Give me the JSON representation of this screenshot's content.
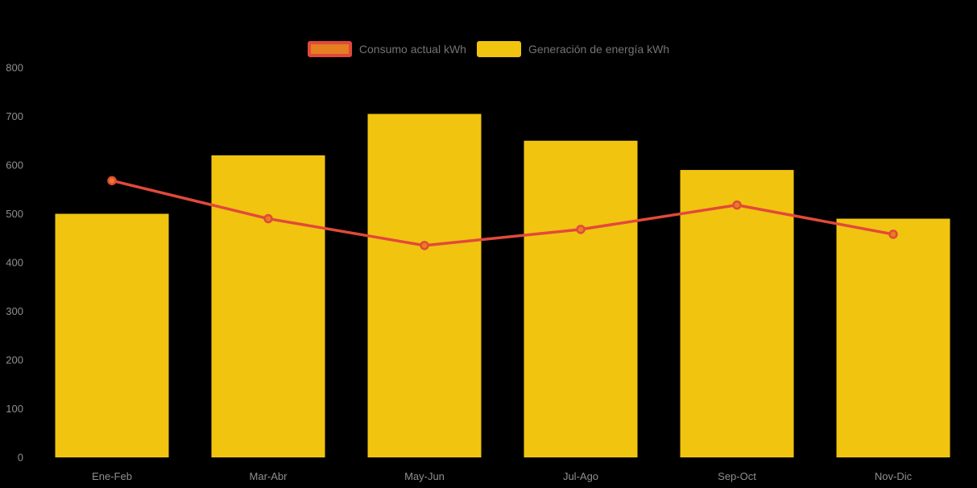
{
  "legend": {
    "items": [
      {
        "label": "Consumo actual kWh",
        "type": "line",
        "swatch_fill": "#e67e22",
        "swatch_border": "#e2493b"
      },
      {
        "label": "Generación de energía kWh",
        "type": "bar",
        "swatch_fill": "#f1c40f",
        "swatch_border": "#f1c40f"
      }
    ]
  },
  "chart_data": {
    "type": "bar",
    "subtype": "bar+line combo",
    "categories": [
      "Ene-Feb",
      "Mar-Abr",
      "May-Jun",
      "Jul-Ago",
      "Sep-Oct",
      "Nov-Dic"
    ],
    "series": [
      {
        "name": "Generación de energía kWh",
        "type": "bar",
        "color": "#f1c40f",
        "values": [
          500,
          620,
          705,
          650,
          590,
          490
        ]
      },
      {
        "name": "Consumo actual kWh",
        "type": "line",
        "color": "#e2493b",
        "point_color": "#e67e22",
        "values": [
          568,
          490,
          435,
          468,
          518,
          458
        ]
      }
    ],
    "title": "",
    "xlabel": "",
    "ylabel": "",
    "ylim": [
      0,
      800
    ],
    "yticks": [
      0,
      100,
      200,
      300,
      400,
      500,
      600,
      700,
      800
    ],
    "grid": false,
    "legend_position": "top-center"
  },
  "colors": {
    "background": "#000000",
    "bar": "#f1c40f",
    "line": "#e2493b",
    "point_fill": "#e67e22",
    "axis_label": "#8f8f8f",
    "legend_label": "#737373"
  }
}
